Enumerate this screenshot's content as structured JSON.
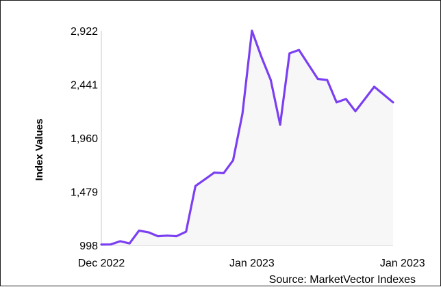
{
  "chart_data": {
    "type": "area",
    "ylabel": "Index Values",
    "xlabel": "",
    "source": "Source: MarketVector Indexes",
    "ylim": [
      998,
      2922
    ],
    "y_ticks": [
      "998",
      "1,479",
      "1,960",
      "2,441",
      "2,922"
    ],
    "y_tick_values": [
      998,
      1479,
      1960,
      2441,
      2922
    ],
    "x_ticks": [
      {
        "label": "Dec 2022",
        "index": 0
      },
      {
        "label": "Jan 2023",
        "index": 16
      },
      {
        "label": "Jan 2023",
        "index": 32
      }
    ],
    "grid": false,
    "line_color": "#7b3ff2",
    "fill_color": "#f7f7f7",
    "series": [
      {
        "values": [
          1005,
          1006,
          1035,
          1015,
          1130,
          1115,
          1080,
          1085,
          1080,
          1120,
          1530,
          1590,
          1650,
          1645,
          1760,
          2180,
          2922,
          2690,
          2480,
          2080,
          2720,
          2750,
          2620,
          2490,
          2480,
          2280,
          2310,
          2200,
          2310,
          2420,
          2350,
          2280
        ]
      }
    ]
  }
}
